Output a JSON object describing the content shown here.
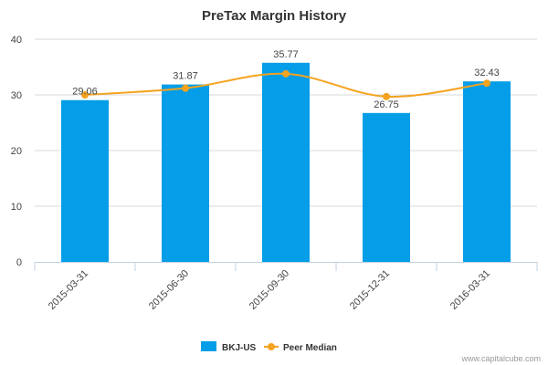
{
  "chart_data": {
    "type": "bar",
    "title": "PreTax Margin History",
    "categories": [
      "2015-03-31",
      "2015-06-30",
      "2015-09-30",
      "2015-12-31",
      "2016-03-31"
    ],
    "series": [
      {
        "name": "BKJ-US",
        "type": "bar",
        "color": "#049de8",
        "values": [
          29.06,
          31.87,
          35.77,
          26.75,
          32.43
        ],
        "labels": [
          "29.06",
          "31.87",
          "35.77",
          "26.75",
          "32.43"
        ]
      },
      {
        "name": "Peer Median",
        "type": "line",
        "color": "#f5a31f",
        "smooth": true,
        "values": [
          30.0,
          31.2,
          33.8,
          29.7,
          32.1
        ]
      }
    ],
    "ylim": [
      0,
      40
    ],
    "yticks": [
      "0",
      "10",
      "20",
      "30",
      "40"
    ],
    "grid": true,
    "legend": "bottom-center",
    "xlabel": "",
    "ylabel": ""
  },
  "credit": "www.capitalcube.com"
}
